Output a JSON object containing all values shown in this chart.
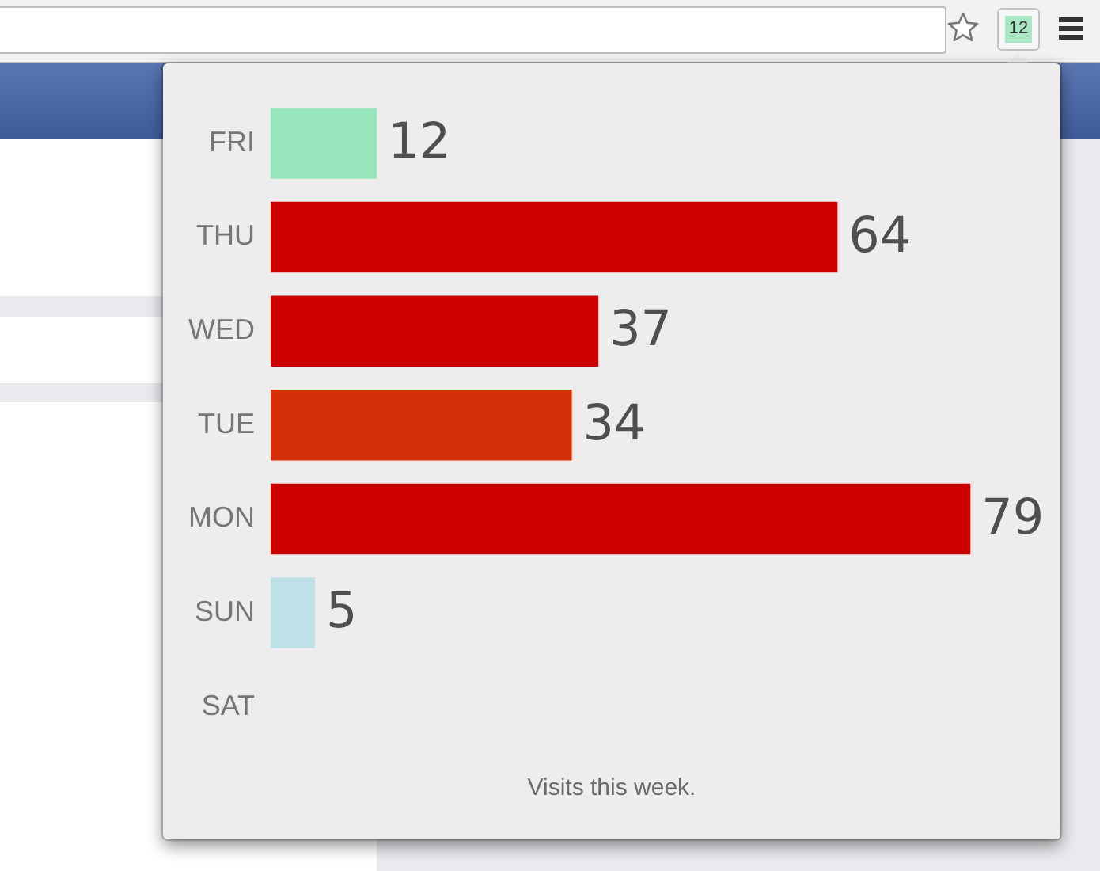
{
  "chart_data": {
    "type": "bar",
    "orientation": "horizontal",
    "categories": [
      "FRI",
      "THU",
      "WED",
      "TUE",
      "MON",
      "SUN",
      "SAT"
    ],
    "values": [
      12,
      64,
      37,
      34,
      79,
      5,
      null
    ],
    "colors": [
      "#98e6bb",
      "#cc0000",
      "#cc0000",
      "#d63008",
      "#cc0000",
      "#bee1e7",
      null
    ],
    "data_labels": true,
    "tick_labels": "y",
    "annotations": [
      "Visits this week.",
      "12"
    ]
  }
}
